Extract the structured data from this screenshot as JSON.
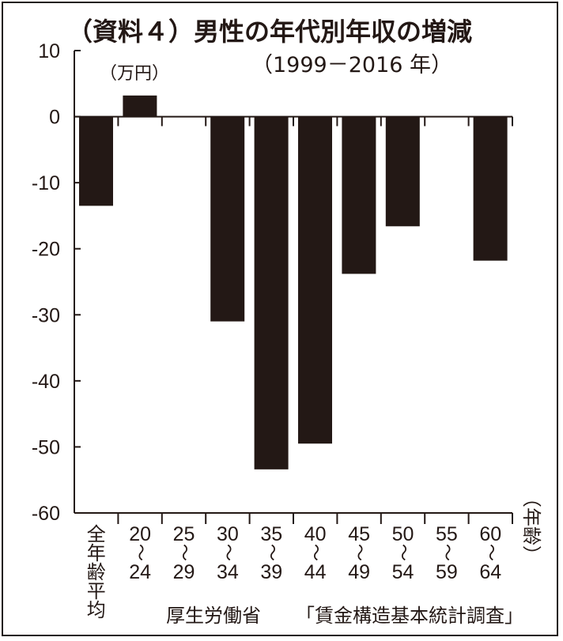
{
  "chart_data": {
    "type": "bar",
    "title": "（資料４）男性の年代別年収の増減",
    "subtitle": "（1999－2016 年）",
    "unit_label": "（万円）",
    "xlabel": "（年齢）",
    "ylabel": "",
    "ylim": [
      -60,
      10
    ],
    "yticks": [
      10,
      0,
      -10,
      -20,
      -30,
      -40,
      -50,
      -60
    ],
    "categories": [
      [
        "全",
        "年",
        "齢",
        "平",
        "均"
      ],
      [
        "20",
        "〜",
        "24"
      ],
      [
        "25",
        "〜",
        "29"
      ],
      [
        "30",
        "〜",
        "34"
      ],
      [
        "35",
        "〜",
        "39"
      ],
      [
        "40",
        "〜",
        "44"
      ],
      [
        "45",
        "〜",
        "49"
      ],
      [
        "50",
        "〜",
        "54"
      ],
      [
        "55",
        "〜",
        "59"
      ],
      [
        "60",
        "〜",
        "64"
      ]
    ],
    "values": [
      -13.5,
      3.2,
      0,
      -31,
      -53.4,
      -49.5,
      -23.8,
      -16.6,
      0,
      -21.8
    ],
    "bar_color": "#231815",
    "grid": false
  },
  "source": {
    "org": "厚生労働省",
    "survey": "「賃金構造基本統計調査」"
  }
}
